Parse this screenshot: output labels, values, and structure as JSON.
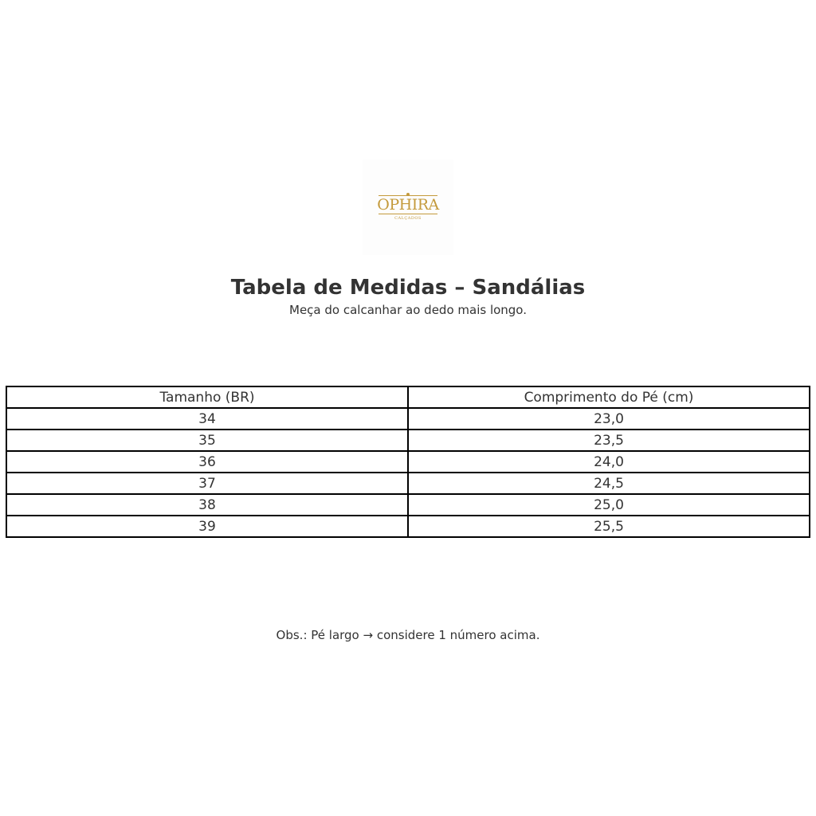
{
  "logo": {
    "name": "OPHIRA",
    "tagline": "CALÇADOS",
    "color": "#c49a3c"
  },
  "title": "Tabela de Medidas – Sandálias",
  "subtitle": "Meça do calcanhar ao dedo mais longo.",
  "table": {
    "headers": [
      "Tamanho (BR)",
      "Comprimento do Pé (cm)"
    ],
    "rows": [
      [
        "34",
        "23,0"
      ],
      [
        "35",
        "23,5"
      ],
      [
        "36",
        "24,0"
      ],
      [
        "37",
        "24,5"
      ],
      [
        "38",
        "25,0"
      ],
      [
        "39",
        "25,5"
      ]
    ]
  },
  "note": "Obs.: Pé largo → considere 1 número acima."
}
